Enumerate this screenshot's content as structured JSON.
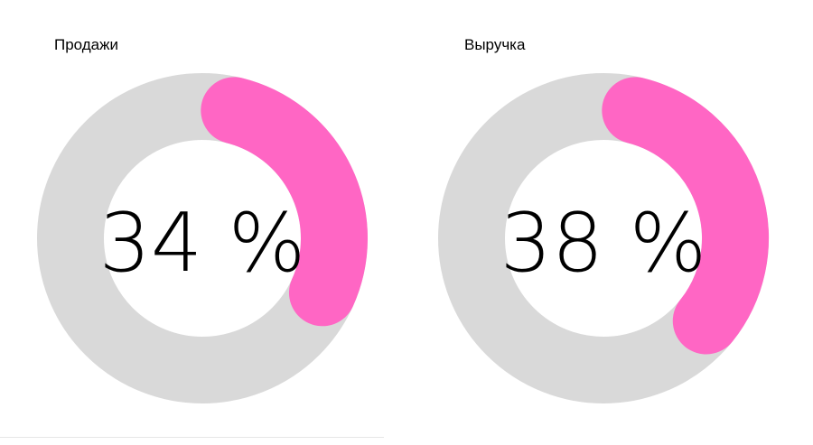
{
  "colors": {
    "track": "#d9d9d9",
    "fill": "#ff66c4",
    "text": "#000000",
    "background": "#ffffff"
  },
  "chart_data": [
    {
      "type": "pie",
      "variant": "donut-gauge",
      "title": "Продажи",
      "value": 34,
      "max": 100,
      "label": "34 %"
    },
    {
      "type": "pie",
      "variant": "donut-gauge",
      "title": "Выручка",
      "value": 38,
      "max": 100,
      "label": "38 %"
    }
  ]
}
